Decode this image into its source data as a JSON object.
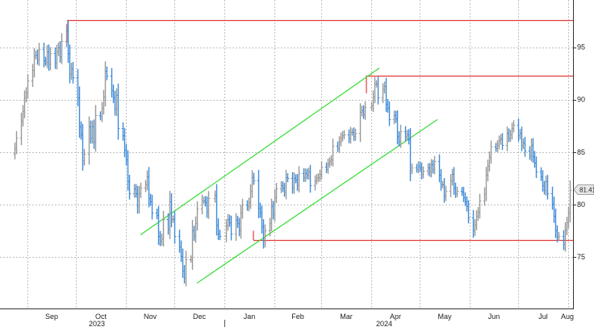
{
  "chart_data": {
    "type": "ohlc",
    "xlabel": "",
    "ylabel": "",
    "x_ticks": [
      "Sep",
      "Oct",
      "Nov",
      "Dec",
      "Jan",
      "Feb",
      "Mar",
      "Apr",
      "May",
      "Jun",
      "Jul",
      "Aug"
    ],
    "years": [
      "2023",
      "2024"
    ],
    "y_ticks": [
      75,
      80,
      85,
      90,
      95
    ],
    "ylim": [
      70,
      100
    ],
    "grid": true,
    "last_price": "81.41",
    "colors": {
      "up": "#999999",
      "down": "#3d8bd9",
      "channel": "#33dd33",
      "levels": "#e23b3b",
      "price_tag_bg": "#e8e8e8"
    },
    "x_dates": [
      "2023-08-24",
      "2023-08-25",
      "2023-08-28",
      "2023-08-29",
      "2023-08-30",
      "2023-08-31",
      "2023-09-01",
      "2023-09-04",
      "2023-09-05",
      "2023-09-06",
      "2023-09-07",
      "2023-09-08",
      "2023-09-11",
      "2023-09-12",
      "2023-09-13",
      "2023-09-14",
      "2023-09-15",
      "2023-09-18",
      "2023-09-19",
      "2023-09-20",
      "2023-09-21",
      "2023-09-22",
      "2023-09-25",
      "2023-09-26",
      "2023-09-27",
      "2023-09-28",
      "2023-09-29",
      "2023-10-02",
      "2023-10-03",
      "2023-10-04",
      "2023-10-05",
      "2023-10-06",
      "2023-10-09",
      "2023-10-10",
      "2023-10-11",
      "2023-10-12",
      "2023-10-13",
      "2023-10-16",
      "2023-10-17",
      "2023-10-18",
      "2023-10-19",
      "2023-10-20",
      "2023-10-23",
      "2023-10-24",
      "2023-10-25",
      "2023-10-26",
      "2023-10-27",
      "2023-10-30",
      "2023-10-31",
      "2023-11-01",
      "2023-11-02",
      "2023-11-03",
      "2023-11-06",
      "2023-11-07",
      "2023-11-08",
      "2023-11-09",
      "2023-11-10",
      "2023-11-13",
      "2023-11-14",
      "2023-11-15",
      "2023-11-16",
      "2023-11-17",
      "2023-11-20",
      "2023-11-21",
      "2023-11-22",
      "2023-11-23",
      "2023-11-24",
      "2023-11-27",
      "2023-11-28",
      "2023-11-29",
      "2023-11-30",
      "2023-12-01",
      "2023-12-04",
      "2023-12-05",
      "2023-12-06",
      "2023-12-07",
      "2023-12-08",
      "2023-12-11",
      "2023-12-12",
      "2023-12-13",
      "2023-12-14",
      "2023-12-15",
      "2023-12-18",
      "2023-12-19",
      "2023-12-20",
      "2023-12-21",
      "2023-12-22",
      "2023-12-26",
      "2023-12-27",
      "2023-12-28",
      "2023-12-29",
      "2024-01-02",
      "2024-01-03",
      "2024-01-04",
      "2024-01-05",
      "2024-01-08",
      "2024-01-09",
      "2024-01-10",
      "2024-01-11",
      "2024-01-12",
      "2024-01-15",
      "2024-01-16",
      "2024-01-17",
      "2024-01-18",
      "2024-01-19",
      "2024-01-22",
      "2024-01-23",
      "2024-01-24",
      "2024-01-25",
      "2024-01-26",
      "2024-01-29",
      "2024-01-30",
      "2024-01-31",
      "2024-02-01",
      "2024-02-02",
      "2024-02-05",
      "2024-02-06",
      "2024-02-07",
      "2024-02-08",
      "2024-02-09",
      "2024-02-12",
      "2024-02-13",
      "2024-02-14",
      "2024-02-15",
      "2024-02-16",
      "2024-02-19",
      "2024-02-20",
      "2024-02-21",
      "2024-02-22",
      "2024-02-23",
      "2024-02-26",
      "2024-02-27",
      "2024-02-28",
      "2024-02-29",
      "2024-03-01",
      "2024-03-04",
      "2024-03-05",
      "2024-03-06",
      "2024-03-07",
      "2024-03-08",
      "2024-03-11",
      "2024-03-12",
      "2024-03-13",
      "2024-03-14",
      "2024-03-15",
      "2024-03-18",
      "2024-03-19",
      "2024-03-20",
      "2024-03-21",
      "2024-03-22",
      "2024-03-25",
      "2024-03-26",
      "2024-03-27",
      "2024-03-28",
      "2024-04-01",
      "2024-04-02",
      "2024-04-03",
      "2024-04-04",
      "2024-04-05",
      "2024-04-08",
      "2024-04-09",
      "2024-04-10",
      "2024-04-11",
      "2024-04-12",
      "2024-04-15",
      "2024-04-16",
      "2024-04-17",
      "2024-04-18",
      "2024-04-19",
      "2024-04-22",
      "2024-04-23",
      "2024-04-24",
      "2024-04-25",
      "2024-04-26",
      "2024-04-29",
      "2024-04-30",
      "2024-05-01",
      "2024-05-02",
      "2024-05-03",
      "2024-05-06",
      "2024-05-07",
      "2024-05-08",
      "2024-05-09",
      "2024-05-10",
      "2024-05-13",
      "2024-05-14",
      "2024-05-15",
      "2024-05-16",
      "2024-05-17",
      "2024-05-20",
      "2024-05-21",
      "2024-05-22",
      "2024-05-23",
      "2024-05-24",
      "2024-05-27",
      "2024-05-28",
      "2024-05-29",
      "2024-05-30",
      "2024-05-31",
      "2024-06-03",
      "2024-06-04",
      "2024-06-05",
      "2024-06-06",
      "2024-06-07",
      "2024-06-10",
      "2024-06-11",
      "2024-06-12",
      "2024-06-13",
      "2024-06-14",
      "2024-06-17",
      "2024-06-18",
      "2024-06-19",
      "2024-06-20",
      "2024-06-21",
      "2024-06-24",
      "2024-06-25",
      "2024-06-26",
      "2024-06-27",
      "2024-06-28",
      "2024-07-01",
      "2024-07-02",
      "2024-07-03",
      "2024-07-04",
      "2024-07-05",
      "2024-07-08",
      "2024-07-09",
      "2024-07-10",
      "2024-07-11",
      "2024-07-12",
      "2024-07-15",
      "2024-07-16",
      "2024-07-17",
      "2024-07-18",
      "2024-07-19",
      "2024-07-22",
      "2024-07-23",
      "2024-07-24",
      "2024-07-25",
      "2024-07-26",
      "2024-07-29",
      "2024-07-30",
      "2024-07-31",
      "2024-08-01",
      "2024-08-02"
    ],
    "closes": [
      85.4,
      86.4,
      88.0,
      88.9,
      90.2,
      90.7,
      91.8,
      92.8,
      94.2,
      94.3,
      93.8,
      94.8,
      93.7,
      93.6,
      94.6,
      93.4,
      94.4,
      93.5,
      94.6,
      95.0,
      94.1,
      95.6,
      96.6,
      94.4,
      92.4,
      93.0,
      92.1,
      90.2,
      87.4,
      86.7,
      84.2,
      84.8,
      87.4,
      86.4,
      87.4,
      86.0,
      88.5,
      88.4,
      89.2,
      90.3,
      92.7,
      92.3,
      90.9,
      90.2,
      89.1,
      90.4,
      87.3,
      86.6,
      85.2,
      84.3,
      82.2,
      81.1,
      81.5,
      81.1,
      79.8,
      81.1,
      81.6,
      81.9,
      82.7,
      80.6,
      80.3,
      79.2,
      79.0,
      77.0,
      76.5,
      76.8,
      78.6,
      77.7,
      80.3,
      78.6,
      78.6,
      77.0,
      76.0,
      75.1,
      73.7,
      73.0,
      74.8,
      74.8,
      77.5,
      77.0,
      78.2,
      79.6,
      80.4,
      80.4,
      80.2,
      79.3,
      80.6,
      80.9,
      78.1,
      77.2,
      77.0,
      78.0,
      78.6,
      78.3,
      77.2,
      78.5,
      78.2,
      77.5,
      79.2,
      80.0,
      79.8,
      80.2,
      81.3,
      82.6,
      82.3,
      79.7,
      79.2,
      77.9,
      76.5,
      77.5,
      78.2,
      79.8,
      79.1,
      80.7,
      81.5,
      81.8,
      81.6,
      81.2,
      82.6,
      82.5,
      81.6,
      82.5,
      82.4,
      81.8,
      83.0,
      82.6,
      83.0,
      82.8,
      83.1,
      81.8,
      82.3,
      82.5,
      82.6,
      82.9,
      83.6,
      83.4,
      83.9,
      84.1,
      84.3,
      85.6,
      85.4,
      86.0,
      86.4,
      86.6,
      86.7,
      86.3,
      86.9,
      86.9,
      86.5,
      86.8,
      88.8,
      89.0,
      88.6,
      89.3,
      89.4,
      90.3,
      91.5,
      91.5,
      90.2,
      91.0,
      91.3,
      89.6,
      89.2,
      88.1,
      88.5,
      88.2,
      86.5,
      86.0,
      87.0,
      86.5,
      86.7,
      86.2,
      83.3,
      83.5,
      83.4,
      83.7,
      83.5,
      82.9,
      83.2,
      83.5,
      83.1,
      83.8,
      83.4,
      84.1,
      82.8,
      81.9,
      81.9,
      80.8,
      81.3,
      82.3,
      82.9,
      81.6,
      81.1,
      81.3,
      81.2,
      80.7,
      80.3,
      79.8,
      78.8,
      77.5,
      78.1,
      78.9,
      79.3,
      80.4,
      81.1,
      82.8,
      83.7,
      84.5,
      85.5,
      85.4,
      85.7,
      86.1,
      86.3,
      85.7,
      86.8,
      86.4,
      86.7,
      87.3,
      87.6,
      86.6,
      86.8,
      85.7,
      85.9,
      85.1,
      84.7,
      85.7,
      84.6,
      84.0,
      83.1,
      82.7,
      81.8,
      81.4,
      82.2,
      81.1,
      80.1,
      78.9,
      77.5,
      76.9,
      77.0,
      76.2,
      77.6,
      78.3,
      79.2,
      81.4
    ]
  }
}
